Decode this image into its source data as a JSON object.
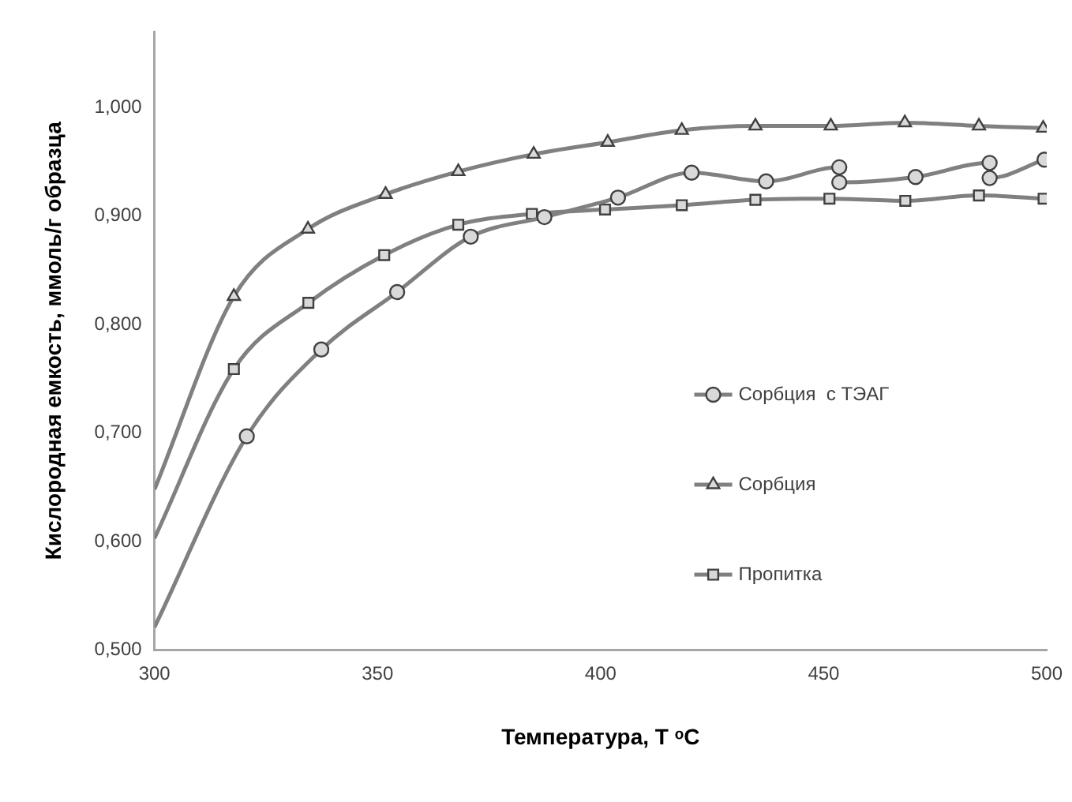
{
  "chart_data": {
    "type": "line",
    "xlabel": "Температура, T ᵒC",
    "ylabel": "Кислородная емкость, ммоль/г образца",
    "xlim": [
      300,
      500
    ],
    "xticks": [
      300,
      350,
      400,
      450,
      500
    ],
    "ylim": [
      0.5,
      1.07
    ],
    "yticks": [
      {
        "value": 0.5,
        "label": "0,500"
      },
      {
        "value": 0.6,
        "label": "0,600"
      },
      {
        "value": 0.7,
        "label": "0,700"
      },
      {
        "value": 0.8,
        "label": "0,800"
      },
      {
        "value": 0.9,
        "label": "0,900"
      },
      {
        "value": 1.0,
        "label": "1,000"
      }
    ],
    "grid": false,
    "legend": "right",
    "line_style": "solid",
    "series": [
      {
        "name": "Сорбция  с ТЭАГ",
        "color": "#808080",
        "marker": "circle",
        "x": [
          300,
          320.7,
          337.4,
          354.4,
          370.9,
          387.4,
          403.9,
          420.4,
          437.1,
          453.5,
          453.5,
          470.6,
          487.2,
          487.2,
          499.5
        ],
        "values": [
          0.521,
          0.697,
          0.777,
          0.83,
          0.881,
          0.899,
          0.917,
          0.94,
          0.932,
          0.945,
          0.931,
          0.936,
          0.949,
          0.935,
          0.952
        ]
      },
      {
        "name": "Сорбция",
        "color": "#808080",
        "marker": "triangle",
        "x": [
          300,
          317.8,
          334.4,
          351.8,
          368.1,
          385,
          401.6,
          418.2,
          434.7,
          451.6,
          468.2,
          484.8,
          499.2
        ],
        "values": [
          0.648,
          0.826,
          0.888,
          0.92,
          0.941,
          0.957,
          0.968,
          0.979,
          0.983,
          0.983,
          0.986,
          0.983,
          0.981
        ]
      },
      {
        "name": "Пропитка",
        "color": "#808080",
        "marker": "square",
        "x": [
          300,
          317.8,
          334.5,
          351.5,
          368.1,
          384.6,
          401,
          418.2,
          434.7,
          451.3,
          468.3,
          484.8,
          499.3
        ],
        "values": [
          0.603,
          0.759,
          0.82,
          0.864,
          0.892,
          0.902,
          0.906,
          0.91,
          0.915,
          0.916,
          0.914,
          0.919,
          0.916
        ]
      }
    ]
  }
}
